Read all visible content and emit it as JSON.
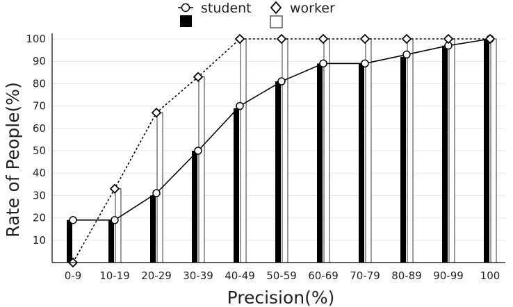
{
  "chart_data": {
    "type": "bar",
    "xlabel": "Precision(%)",
    "ylabel": "Rate of People(%)",
    "categories": [
      "0-9",
      "10-19",
      "20-29",
      "30-39",
      "40-49",
      "50-59",
      "60-69",
      "70-79",
      "80-89",
      "90-99",
      "100"
    ],
    "ylim": [
      0,
      100
    ],
    "yticks": [
      10,
      20,
      30,
      40,
      50,
      60,
      70,
      80,
      90,
      100
    ],
    "grid": true,
    "legend_position": "top",
    "series": [
      {
        "name": "student",
        "bar_values": [
          19,
          19,
          30,
          50,
          69,
          81,
          89,
          89,
          92,
          97,
          100
        ],
        "line_values": [
          19,
          19,
          31,
          50,
          70,
          81,
          89,
          89,
          93,
          97,
          100
        ],
        "line_style": "solid",
        "marker": "circle",
        "bar_fill": "#000000"
      },
      {
        "name": "worker",
        "bar_values": [
          0,
          33,
          67,
          83,
          100,
          100,
          100,
          100,
          100,
          100,
          100
        ],
        "line_values": [
          0,
          33,
          67,
          83,
          100,
          100,
          100,
          100,
          100,
          100,
          100
        ],
        "line_style": "dashed",
        "marker": "diamond",
        "bar_fill": "#ffffff"
      }
    ]
  },
  "colors": {
    "axis": "#000000",
    "grid": "#e6e6e6",
    "student_bar": "#000000",
    "worker_bar_fill": "#ffffff",
    "worker_bar_stroke": "#333333",
    "line": "#000000"
  }
}
